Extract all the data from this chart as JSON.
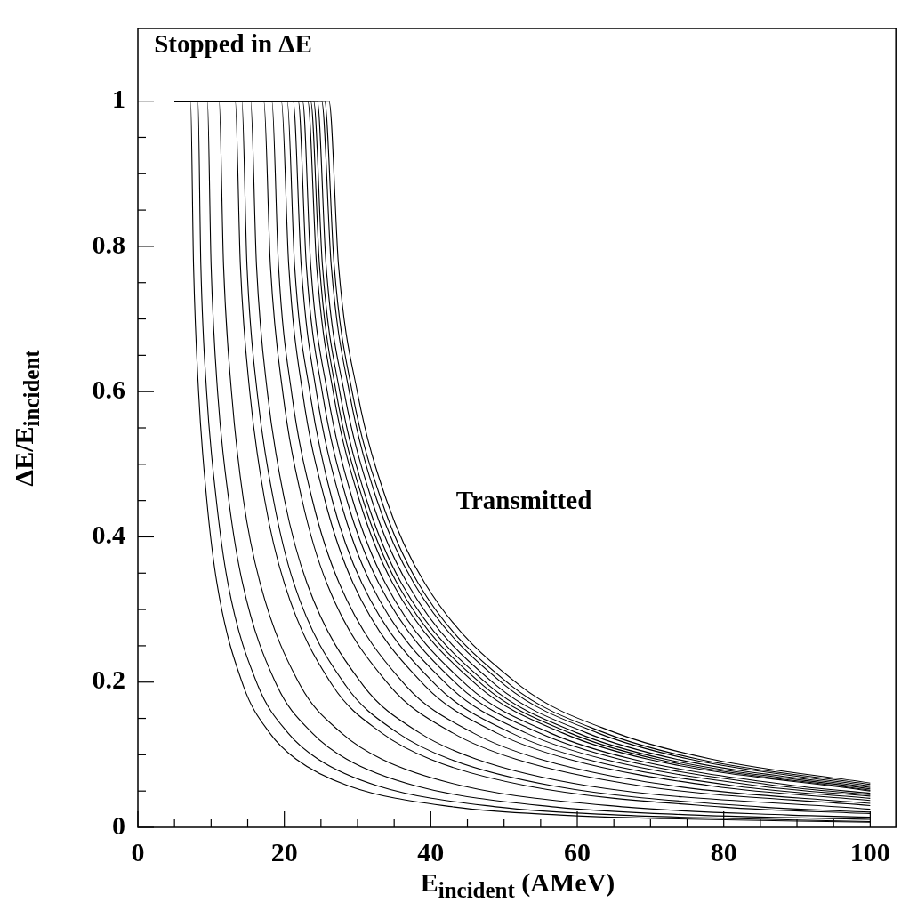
{
  "chart_data": {
    "type": "line",
    "xlabel": "E$_{incident}$ (AMeV)",
    "ylabel": "ΔE/E$_{incident}$",
    "marker": "none",
    "xlim": [
      0,
      103.5
    ],
    "ylim": [
      0,
      1.1
    ],
    "xticks": [
      0,
      {
        "value": 5,
        "label": null
      },
      {
        "value": 10,
        "label": null
      },
      {
        "value": 15,
        "label": null
      },
      20,
      {
        "value": 25,
        "label": null
      },
      {
        "value": 30,
        "label": null
      },
      {
        "value": 35,
        "label": null
      },
      40,
      {
        "value": 45,
        "label": null
      },
      {
        "value": 50,
        "label": null
      },
      {
        "value": 55,
        "label": null
      },
      60,
      {
        "value": 65,
        "label": null
      },
      {
        "value": 70,
        "label": null
      },
      {
        "value": 75,
        "label": null
      },
      80,
      {
        "value": 85,
        "label": null
      },
      {
        "value": 90,
        "label": null
      },
      {
        "value": 95,
        "label": null
      },
      100
    ],
    "yticks": [
      0,
      {
        "value": 0.05,
        "label": null
      },
      {
        "value": 0.1,
        "label": null
      },
      {
        "value": 0.15,
        "label": null
      },
      0.2,
      {
        "value": 0.25,
        "label": null
      },
      {
        "value": 0.3,
        "label": null
      },
      {
        "value": 0.35,
        "label": null
      },
      0.4,
      {
        "value": 0.45,
        "label": null
      },
      {
        "value": 0.5,
        "label": null
      },
      {
        "value": 0.55,
        "label": null
      },
      0.6,
      {
        "value": 0.65,
        "label": null
      },
      {
        "value": 0.7,
        "label": null
      },
      {
        "value": 0.75,
        "label": null
      },
      0.8,
      {
        "value": 0.85,
        "label": null
      },
      {
        "value": 0.9,
        "label": null
      },
      {
        "value": 0.95,
        "label": null
      },
      1
    ],
    "annotations": [
      "Stopped in ΔE",
      "Transmitted"
    ],
    "series": [
      {
        "color": "#000000",
        "x": [
          5,
          7.2,
          7.6,
          8.3,
          9.4,
          10.8,
          14.4,
          18,
          21.6,
          28.8,
          43.2,
          57.6,
          72,
          100
        ],
        "values": [
          1,
          1,
          0.774,
          0.598,
          0.452,
          0.336,
          0.195,
          0.13,
          0.094,
          0.057,
          0.028,
          0.017,
          0.012,
          0.007
        ]
      },
      {
        "color": "#000000",
        "x": [
          5,
          8.2,
          8.6,
          9.4,
          10.7,
          12.3,
          16.4,
          20.5,
          24.6,
          32.8,
          49.2,
          65.6,
          82,
          100
        ],
        "values": [
          1,
          1,
          0.774,
          0.598,
          0.452,
          0.336,
          0.195,
          0.13,
          0.094,
          0.057,
          0.028,
          0.017,
          0.012,
          0.008
        ]
      },
      {
        "color": "#000000",
        "x": [
          5,
          9.5,
          10,
          10.9,
          12.4,
          14.3,
          19,
          23.8,
          28.5,
          38,
          57,
          76,
          100
        ],
        "values": [
          1,
          1,
          0.774,
          0.598,
          0.452,
          0.336,
          0.195,
          0.13,
          0.094,
          0.057,
          0.028,
          0.017,
          0.011
        ]
      },
      {
        "color": "#000000",
        "x": [
          5,
          11.1,
          11.7,
          12.8,
          14.4,
          16.7,
          22.2,
          27.8,
          33.3,
          44.4,
          66.6,
          88.8,
          100
        ],
        "values": [
          1,
          1,
          0.774,
          0.598,
          0.452,
          0.336,
          0.195,
          0.13,
          0.094,
          0.057,
          0.028,
          0.017,
          0.014
        ]
      },
      {
        "color": "#000000",
        "x": [
          5,
          13.3,
          14,
          15.3,
          17.3,
          20,
          26.6,
          33.3,
          39.9,
          53.2,
          79.8,
          100
        ],
        "values": [
          1,
          1,
          0.774,
          0.598,
          0.452,
          0.336,
          0.195,
          0.13,
          0.094,
          0.057,
          0.028,
          0.019
        ]
      },
      {
        "color": "#000000",
        "x": [
          5,
          14.2,
          14.9,
          16.3,
          18.5,
          21.3,
          28.4,
          35.5,
          42.6,
          56.8,
          85.2,
          100
        ],
        "values": [
          1,
          1,
          0.774,
          0.598,
          0.452,
          0.336,
          0.195,
          0.13,
          0.094,
          0.057,
          0.028,
          0.021
        ]
      },
      {
        "color": "#000000",
        "x": [
          5,
          15.4,
          16.2,
          17.7,
          20,
          23.1,
          30.8,
          38.5,
          46.2,
          61.6,
          100
        ],
        "values": [
          1,
          1,
          0.774,
          0.598,
          0.452,
          0.336,
          0.195,
          0.13,
          0.094,
          0.057,
          0.025
        ]
      },
      {
        "color": "#000000",
        "x": [
          5,
          17.2,
          18.1,
          19.8,
          22.4,
          25.8,
          34.4,
          43,
          51.6,
          68.8,
          100
        ],
        "values": [
          1,
          1,
          0.774,
          0.598,
          0.452,
          0.336,
          0.195,
          0.13,
          0.094,
          0.057,
          0.03
        ]
      },
      {
        "color": "#000000",
        "x": [
          5,
          18.3,
          19.2,
          21,
          23.8,
          27.5,
          36.6,
          45.8,
          54.9,
          73.2,
          100
        ],
        "values": [
          1,
          1,
          0.774,
          0.598,
          0.452,
          0.336,
          0.195,
          0.13,
          0.094,
          0.057,
          0.033
        ]
      },
      {
        "color": "#000000",
        "x": [
          5,
          19.6,
          20.6,
          22.5,
          25.5,
          29.4,
          39.2,
          49,
          58.8,
          78.4,
          100
        ],
        "values": [
          1,
          1,
          0.774,
          0.598,
          0.452,
          0.336,
          0.195,
          0.13,
          0.094,
          0.057,
          0.037
        ]
      },
      {
        "color": "#000000",
        "x": [
          5,
          20.4,
          21.4,
          23.5,
          26.5,
          30.6,
          40.8,
          51,
          61.2,
          81.6,
          100
        ],
        "values": [
          1,
          1,
          0.774,
          0.598,
          0.452,
          0.336,
          0.195,
          0.13,
          0.094,
          0.057,
          0.04
        ]
      },
      {
        "color": "#000000",
        "x": [
          5,
          21.2,
          22.3,
          24.4,
          27.6,
          31.8,
          42.4,
          53,
          63.6,
          84.8,
          100
        ],
        "values": [
          1,
          1,
          0.774,
          0.598,
          0.452,
          0.336,
          0.195,
          0.13,
          0.094,
          0.057,
          0.043
        ]
      },
      {
        "color": "#000000",
        "x": [
          5,
          21.9,
          23,
          25.2,
          28.5,
          32.9,
          43.8,
          54.8,
          65.7,
          87.6,
          100
        ],
        "values": [
          1,
          1,
          0.774,
          0.598,
          0.452,
          0.336,
          0.195,
          0.13,
          0.094,
          0.057,
          0.045
        ]
      },
      {
        "color": "#000000",
        "x": [
          5,
          22.5,
          23.6,
          25.9,
          29.3,
          33.8,
          45,
          56.3,
          67.5,
          90,
          100
        ],
        "values": [
          1,
          1,
          0.774,
          0.598,
          0.452,
          0.336,
          0.195,
          0.13,
          0.094,
          0.057,
          0.047
        ]
      },
      {
        "color": "#000000",
        "x": [
          5,
          23.2,
          24.4,
          26.7,
          30.2,
          34.8,
          46.4,
          58,
          69.6,
          100
        ],
        "values": [
          1,
          1,
          0.774,
          0.598,
          0.452,
          0.336,
          0.195,
          0.13,
          0.094,
          0.05
        ]
      },
      {
        "color": "#000000",
        "x": [
          5,
          23.6,
          24.8,
          27.1,
          30.7,
          35.4,
          47.2,
          59,
          70.8,
          100
        ],
        "values": [
          1,
          1,
          0.774,
          0.598,
          0.452,
          0.336,
          0.195,
          0.13,
          0.094,
          0.051
        ]
      },
      {
        "color": "#000000",
        "x": [
          5,
          24,
          25.2,
          27.6,
          31.2,
          36,
          48,
          60,
          72,
          100
        ],
        "values": [
          1,
          1,
          0.774,
          0.598,
          0.452,
          0.336,
          0.195,
          0.13,
          0.094,
          0.053
        ]
      },
      {
        "color": "#000000",
        "x": [
          5,
          24.5,
          25.7,
          28.2,
          31.9,
          36.8,
          49,
          61.3,
          73.5,
          100
        ],
        "values": [
          1,
          1,
          0.774,
          0.598,
          0.452,
          0.336,
          0.195,
          0.13,
          0.094,
          0.055
        ]
      },
      {
        "color": "#000000",
        "x": [
          5,
          25.1,
          26.4,
          28.9,
          32.6,
          37.7,
          50.2,
          62.8,
          75.3,
          100
        ],
        "values": [
          1,
          1,
          0.774,
          0.598,
          0.452,
          0.336,
          0.195,
          0.13,
          0.094,
          0.057
        ]
      },
      {
        "color": "#000000",
        "x": [
          5,
          25.5,
          26.8,
          29.3,
          33.2,
          38.3,
          51,
          63.8,
          76.5,
          100
        ],
        "values": [
          1,
          1,
          0.774,
          0.598,
          0.452,
          0.336,
          0.195,
          0.13,
          0.094,
          0.059
        ]
      },
      {
        "color": "#000000",
        "x": [
          5,
          26.1,
          27.4,
          30,
          33.9,
          39.2,
          52.2,
          65.3,
          78.3,
          100
        ],
        "values": [
          1,
          1,
          0.774,
          0.598,
          0.452,
          0.336,
          0.195,
          0.13,
          0.094,
          0.061
        ]
      }
    ]
  }
}
